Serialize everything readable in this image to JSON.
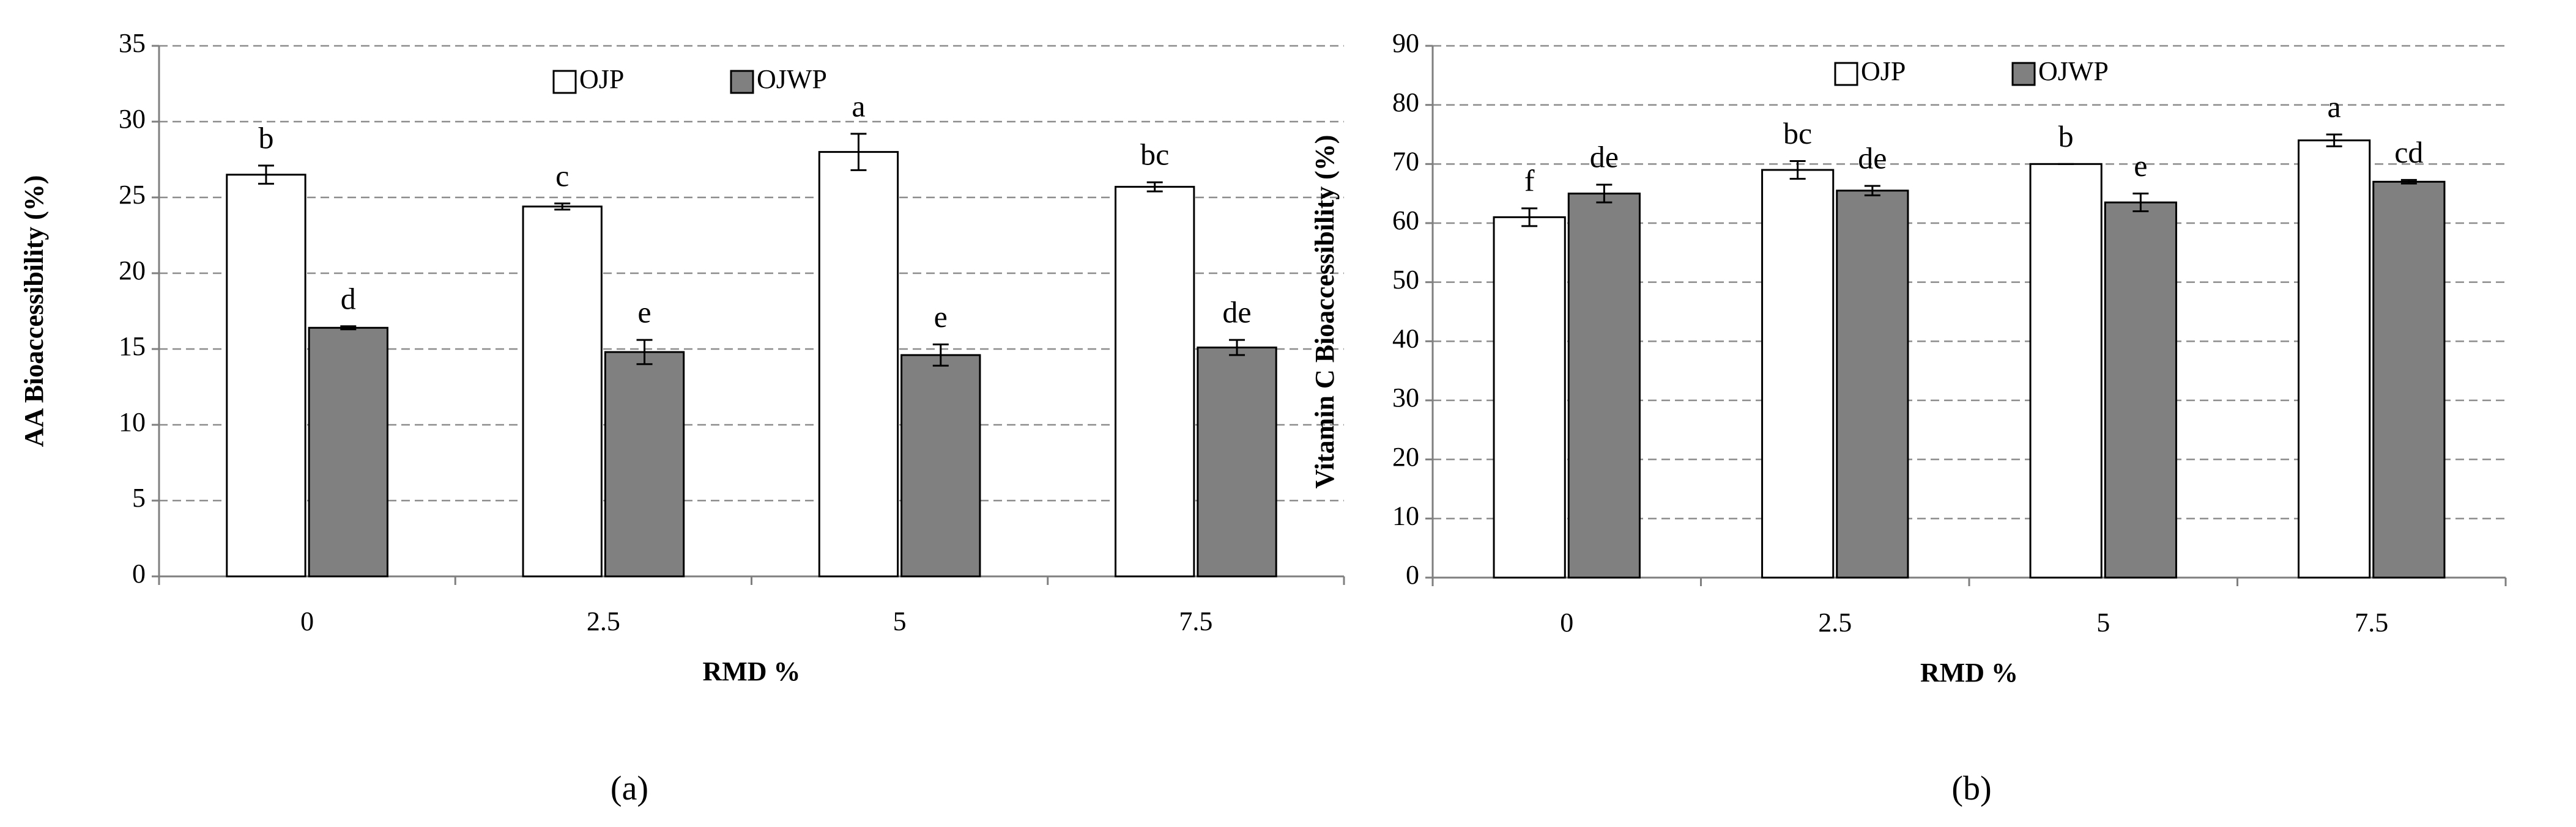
{
  "chart_data": [
    {
      "type": "bar",
      "ylabel": "AA Bioaccessibility (%)",
      "xlabel": "RMD %",
      "panel_label": "(a)",
      "categories": [
        "0",
        "2.5",
        "5",
        "7.5"
      ],
      "ylim": [
        0,
        35
      ],
      "yticks": [
        0,
        5,
        10,
        15,
        20,
        25,
        30,
        35
      ],
      "grid": true,
      "series": [
        {
          "name": "OJP",
          "color": "#ffffff",
          "values": [
            26.5,
            24.4,
            28.0,
            25.7
          ],
          "errors": [
            0.6,
            0.2,
            1.2,
            0.3
          ],
          "letters": [
            "b",
            "c",
            "a",
            "bc"
          ]
        },
        {
          "name": "OJWP",
          "color": "#808080",
          "values": [
            16.4,
            14.8,
            14.6,
            15.1
          ],
          "errors": [
            0.1,
            0.8,
            0.7,
            0.5
          ],
          "letters": [
            "d",
            "e",
            "e",
            "de"
          ]
        }
      ]
    },
    {
      "type": "bar",
      "ylabel": "Vitamin C Bioaccessibility (%)",
      "xlabel": "RMD %",
      "panel_label": "(b)",
      "categories": [
        "0",
        "2.5",
        "5",
        "7.5"
      ],
      "ylim": [
        0,
        90
      ],
      "yticks": [
        0,
        10,
        20,
        30,
        40,
        50,
        60,
        70,
        80,
        90
      ],
      "grid": true,
      "series": [
        {
          "name": "OJP",
          "color": "#ffffff",
          "values": [
            61,
            69,
            70,
            74
          ],
          "errors": [
            1.5,
            1.5,
            0,
            1
          ],
          "letters": [
            "f",
            "bc",
            "b",
            "a"
          ]
        },
        {
          "name": "OJWP",
          "color": "#808080",
          "values": [
            65,
            65.5,
            63.5,
            67
          ],
          "errors": [
            1.5,
            0.8,
            1.5,
            0.3
          ],
          "letters": [
            "de",
            "de",
            "e",
            "cd"
          ]
        }
      ]
    }
  ]
}
